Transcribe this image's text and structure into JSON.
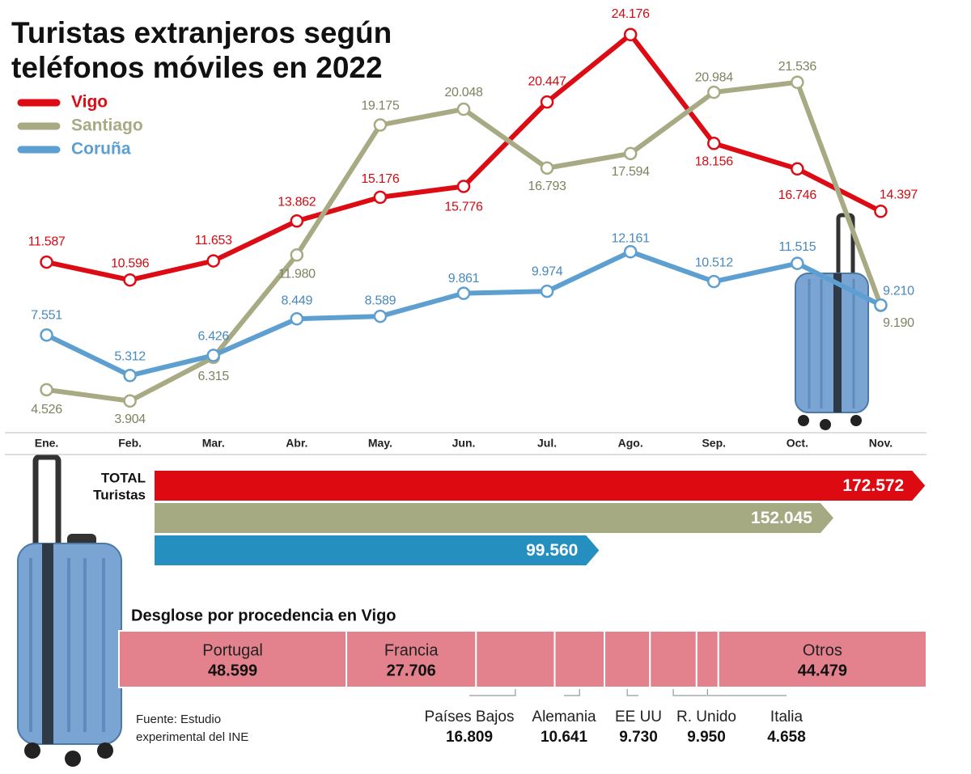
{
  "chart_data": [
    {
      "type": "line",
      "title": [
        "Turistas extranjeros según",
        "teléfonos móviles en 2022"
      ],
      "categories": [
        "Ene.",
        "Feb.",
        "Mar.",
        "Abr.",
        "May.",
        "Jun.",
        "Jul.",
        "Ago.",
        "Sep.",
        "Oct.",
        "Nov."
      ],
      "ylim": [
        0,
        26000
      ],
      "series": [
        {
          "name": "Vigo",
          "color": "#dc0b14",
          "label_color": "#d40a12",
          "values": [
            11587,
            10596,
            11653,
            13862,
            15176,
            15776,
            20447,
            24176,
            18156,
            16746,
            14397
          ],
          "value_labels": [
            "11.587",
            "10.596",
            "11.653",
            "13.862",
            "15.176",
            "15.776",
            "20.447",
            "24.176",
            "18.156",
            "16.746",
            "14.397"
          ]
        },
        {
          "name": "Santiago",
          "color": "#a7aa82",
          "label_color": "#7f8260",
          "values": [
            4526,
            3904,
            6315,
            11980,
            19175,
            20048,
            16793,
            17594,
            20984,
            21536,
            9190
          ],
          "value_labels": [
            "4.526",
            "3.904",
            "6.315",
            "11.980",
            "19.175",
            "20.048",
            "16.793",
            "17.594",
            "20.984",
            "21.536",
            "9.190"
          ]
        },
        {
          "name": "Coruña",
          "color": "#5c9fd0",
          "label_color": "#4889bd",
          "values": [
            7551,
            5312,
            6426,
            8449,
            8589,
            9861,
            9974,
            12161,
            10512,
            11515,
            9210
          ],
          "value_labels": [
            "7.551",
            "5.312",
            "6.426",
            "8.449",
            "8.589",
            "9.861",
            "9.974",
            "12.161",
            "10.512",
            "11.515",
            "9.210"
          ]
        }
      ]
    },
    {
      "type": "hbar",
      "label": [
        "TOTAL",
        "Turistas"
      ],
      "xlim": [
        0,
        180000
      ],
      "values": [
        172572,
        152045,
        99560
      ],
      "value_labels": [
        "172.572",
        "152.045",
        "99.560"
      ],
      "colors": [
        "#dd0a12",
        "#a6aa82",
        "#2590bf"
      ]
    },
    {
      "type": "stacked_hbar",
      "title": "Desglose por procedencia en Vigo",
      "categories": [
        "Portugal",
        "Francia",
        "Países Bajos",
        "Alemania",
        "EE UU",
        "R. Unido",
        "Italia",
        "Otros"
      ],
      "values": [
        48599,
        27706,
        16809,
        10641,
        9730,
        9950,
        4658,
        44479
      ],
      "value_labels": [
        "48.599",
        "27.706",
        "16.809",
        "10.641",
        "9.730",
        "9.950",
        "4.658",
        "44.479"
      ],
      "color": "#e3828c",
      "source": [
        "Fuente: Estudio",
        "experimental del INE"
      ]
    }
  ]
}
